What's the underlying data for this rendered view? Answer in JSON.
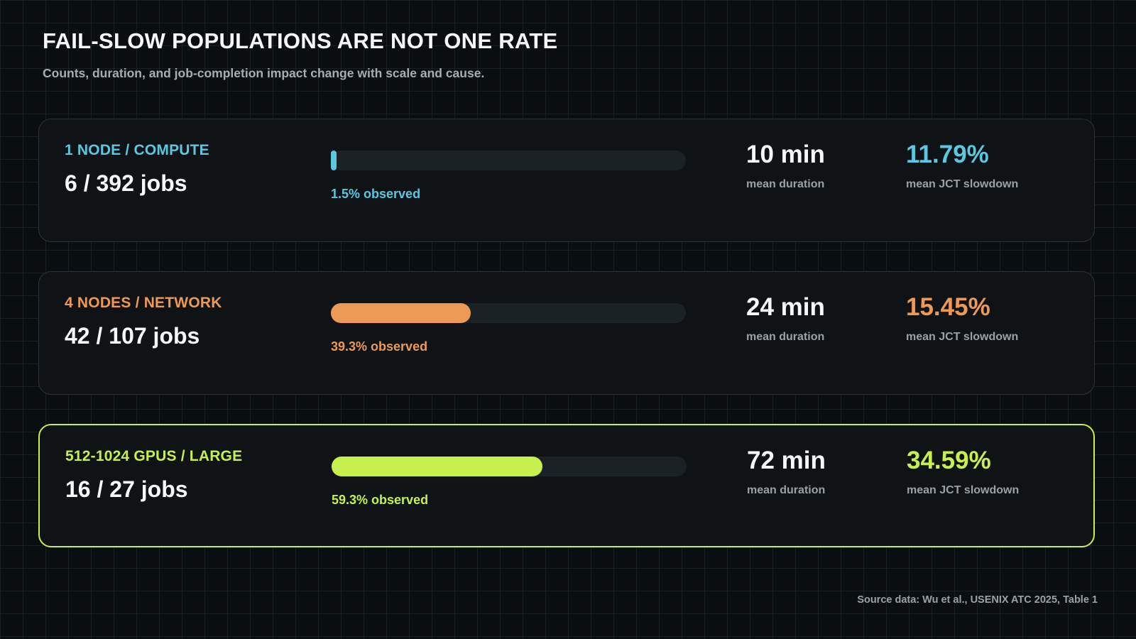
{
  "header": {
    "title": "FAIL-SLOW POPULATIONS ARE NOT ONE RATE",
    "subtitle": "Counts, duration, and job-completion impact change with scale and cause."
  },
  "chart_data": {
    "type": "bar",
    "categories": [
      "1 NODE / COMPUTE",
      "4 NODES / NETWORK",
      "512-1024 GPUS / LARGE"
    ],
    "values_percent": [
      1.5,
      39.3,
      59.3
    ],
    "bar_max_percent": 100,
    "colors": [
      "#5bc8e0",
      "#ec9a56",
      "#c8f04d"
    ],
    "highlight_index": 2,
    "rows": [
      {
        "category": "1 NODE / COMPUTE",
        "jobs": "6 / 392 jobs",
        "observed_percent": 1.5,
        "observed_label": "1.5% observed",
        "duration": "10 min",
        "duration_label": "mean duration",
        "slowdown": "11.79%",
        "slowdown_label": "mean JCT slowdown",
        "color": "#5bc8e0"
      },
      {
        "category": "4 NODES / NETWORK",
        "jobs": "42 / 107 jobs",
        "observed_percent": 39.3,
        "observed_label": "39.3% observed",
        "duration": "24 min",
        "duration_label": "mean duration",
        "slowdown": "15.45%",
        "slowdown_label": "mean JCT slowdown",
        "color": "#ec9a56"
      },
      {
        "category": "512-1024 GPUS / LARGE",
        "jobs": "16 / 27 jobs",
        "observed_percent": 59.3,
        "observed_label": "59.3% observed",
        "duration": "72 min",
        "duration_label": "mean duration",
        "slowdown": "34.59%",
        "slowdown_label": "mean JCT slowdown",
        "color": "#c8f04d"
      }
    ]
  },
  "footer": {
    "source": "Source data: Wu et al., USENIX ATC 2025, Table 1"
  }
}
